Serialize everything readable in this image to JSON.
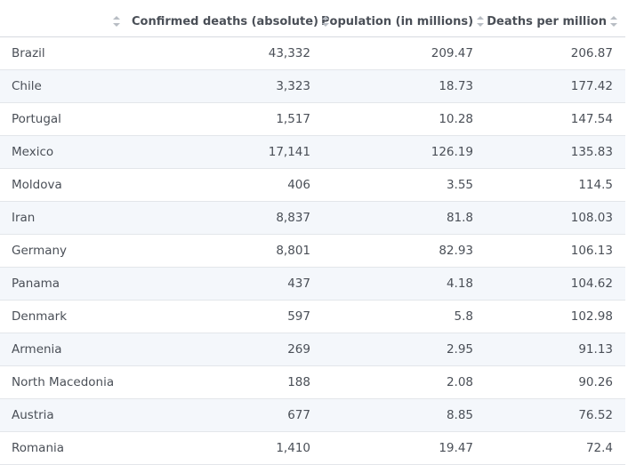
{
  "chart_data": {
    "type": "table",
    "columns": [
      {
        "key": "country",
        "label": ""
      },
      {
        "key": "deaths",
        "label": "Confirmed deaths (absolute)"
      },
      {
        "key": "population",
        "label": "Population (in millions)"
      },
      {
        "key": "per_million",
        "label": "Deaths per million"
      }
    ],
    "rows": [
      {
        "country": "Brazil",
        "deaths": "43,332",
        "population": "209.47",
        "per_million": "206.87"
      },
      {
        "country": "Chile",
        "deaths": "3,323",
        "population": "18.73",
        "per_million": "177.42"
      },
      {
        "country": "Portugal",
        "deaths": "1,517",
        "population": "10.28",
        "per_million": "147.54"
      },
      {
        "country": "Mexico",
        "deaths": "17,141",
        "population": "126.19",
        "per_million": "135.83"
      },
      {
        "country": "Moldova",
        "deaths": "406",
        "population": "3.55",
        "per_million": "114.5"
      },
      {
        "country": "Iran",
        "deaths": "8,837",
        "population": "81.8",
        "per_million": "108.03"
      },
      {
        "country": "Germany",
        "deaths": "8,801",
        "population": "82.93",
        "per_million": "106.13"
      },
      {
        "country": "Panama",
        "deaths": "437",
        "population": "4.18",
        "per_million": "104.62"
      },
      {
        "country": "Denmark",
        "deaths": "597",
        "population": "5.8",
        "per_million": "102.98"
      },
      {
        "country": "Armenia",
        "deaths": "269",
        "population": "2.95",
        "per_million": "91.13"
      },
      {
        "country": "North Macedonia",
        "deaths": "188",
        "population": "2.08",
        "per_million": "90.26"
      },
      {
        "country": "Austria",
        "deaths": "677",
        "population": "8.85",
        "per_million": "76.52"
      },
      {
        "country": "Romania",
        "deaths": "1,410",
        "population": "19.47",
        "per_million": "72.4"
      }
    ]
  },
  "icons": {
    "sort": "sort-arrows-icon"
  },
  "colors": {
    "header_text": "#4a4f57",
    "row_alt_background": "#f4f7fb",
    "border": "#d6dae0",
    "sort_icon": "#b8bdc4"
  }
}
